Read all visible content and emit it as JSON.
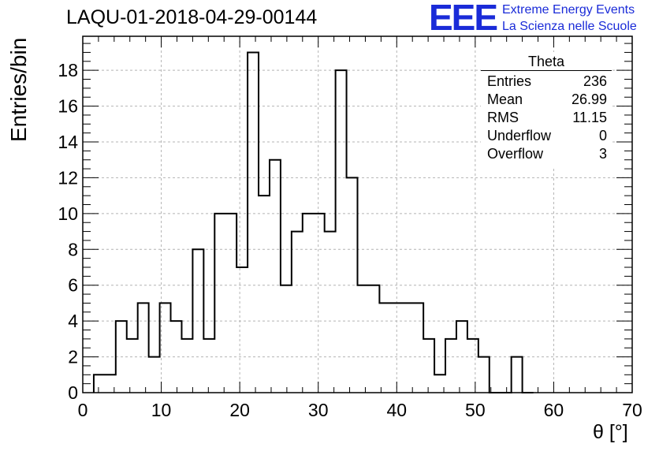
{
  "title": "LAQU-01-2018-04-29-00144",
  "logo": {
    "mark": "EEE",
    "line1": "Extreme Energy Events",
    "line2": "La Scienza nelle Scuole",
    "color": "#1a2bd8"
  },
  "stats": {
    "name": "Theta",
    "rows": [
      {
        "key": "Entries",
        "value": "236"
      },
      {
        "key": "Mean",
        "value": "26.99"
      },
      {
        "key": "RMS",
        "value": "11.15"
      },
      {
        "key": "Underflow",
        "value": "0"
      },
      {
        "key": "Overflow",
        "value": "3"
      }
    ]
  },
  "chart_data": {
    "type": "bar",
    "histogram": "step",
    "xlabel": "θ [°]",
    "ylabel": "Entries/bin",
    "xlim": [
      0,
      70
    ],
    "ylim": [
      0,
      19.9
    ],
    "x_ticks": [
      0,
      10,
      20,
      30,
      40,
      50,
      60,
      70
    ],
    "y_ticks": [
      0,
      2,
      4,
      6,
      8,
      10,
      12,
      14,
      16,
      18
    ],
    "grid": true,
    "bin_width": 1.4,
    "bin_edges_start": 1.4,
    "values": [
      1,
      1,
      4,
      3,
      5,
      2,
      5,
      4,
      3,
      8,
      3,
      10,
      10,
      7,
      19,
      11,
      13,
      6,
      9,
      10,
      10,
      9,
      18,
      12,
      6,
      6,
      5,
      5,
      5,
      5,
      3,
      1,
      3,
      4,
      3,
      2,
      0,
      0,
      2,
      0
    ]
  }
}
